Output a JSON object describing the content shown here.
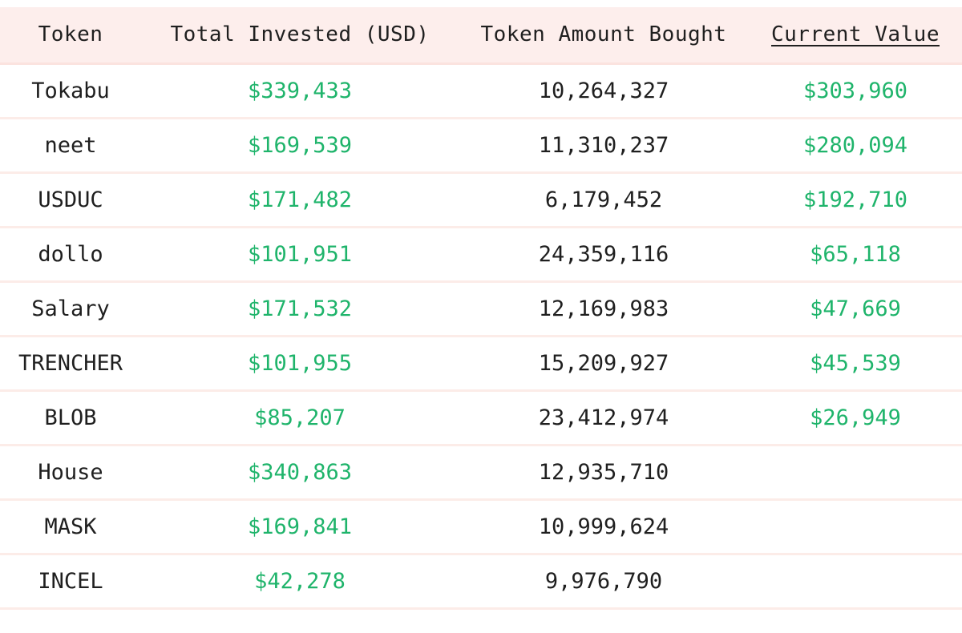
{
  "table": {
    "headers": {
      "token": "Token",
      "invested": "Total Invested (USD)",
      "amount": "Token Amount Bought",
      "current": "Current Value"
    },
    "rows": [
      {
        "token": "Tokabu",
        "invested": "$339,433",
        "amount": "10,264,327",
        "current": "$303,960"
      },
      {
        "token": "neet",
        "invested": "$169,539",
        "amount": "11,310,237",
        "current": "$280,094"
      },
      {
        "token": "USDUC",
        "invested": "$171,482",
        "amount": "6,179,452",
        "current": "$192,710"
      },
      {
        "token": "dollo",
        "invested": "$101,951",
        "amount": "24,359,116",
        "current": "$65,118"
      },
      {
        "token": "Salary",
        "invested": "$171,532",
        "amount": "12,169,983",
        "current": "$47,669"
      },
      {
        "token": "TRENCHER",
        "invested": "$101,955",
        "amount": "15,209,927",
        "current": "$45,539"
      },
      {
        "token": "BLOB",
        "invested": "$85,207",
        "amount": "23,412,974",
        "current": "$26,949"
      },
      {
        "token": "House",
        "invested": "$340,863",
        "amount": "12,935,710",
        "current": ""
      },
      {
        "token": "MASK",
        "invested": "$169,841",
        "amount": "10,999,624",
        "current": ""
      },
      {
        "token": "INCEL",
        "invested": "$42,278",
        "amount": "9,976,790",
        "current": ""
      }
    ]
  },
  "colors": {
    "header_bg": "#fdeeec",
    "money_green": "#1fb46b",
    "text_dark": "#1f1f1f",
    "row_divider": "#fcece8"
  }
}
